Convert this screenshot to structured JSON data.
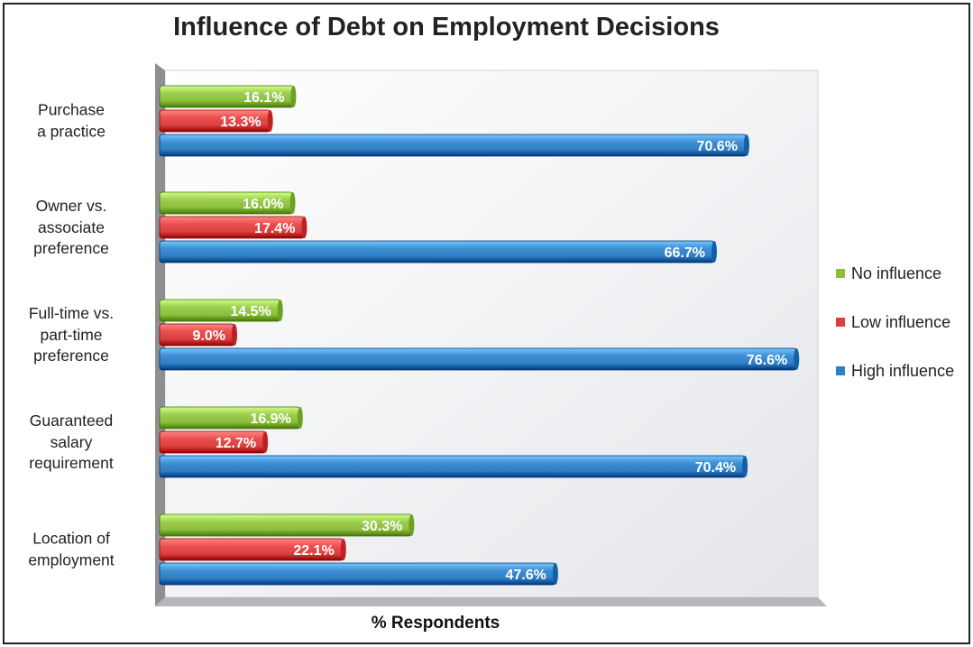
{
  "chart_data": {
    "type": "bar",
    "orientation": "horizontal",
    "title": "Influence of Debt on Employment Decisions",
    "xlabel": "% Respondents",
    "ylabel": "",
    "xlim": [
      0,
      80
    ],
    "categories": [
      "Purchase\na practice",
      "Owner vs.\nassociate\npreference",
      "Full-time vs.\npart-time\npreference",
      "Guaranteed\nsalary\nrequirement",
      "Location of\nemployment"
    ],
    "series": [
      {
        "name": "No influence",
        "color": "#8cbf3f",
        "values": [
          16.1,
          16.0,
          14.5,
          16.9,
          30.3
        ],
        "labels": [
          "16.1%",
          "16.0%",
          "14.5%",
          "16.9%",
          "30.3%"
        ]
      },
      {
        "name": "Low influence",
        "color": "#d9403f",
        "values": [
          13.3,
          17.4,
          9.0,
          12.7,
          22.1
        ],
        "labels": [
          "13.3%",
          "17.4%",
          "9.0%",
          "12.7%",
          "22.1%"
        ]
      },
      {
        "name": "High influence",
        "color": "#2f7fc4",
        "values": [
          70.6,
          66.7,
          76.6,
          70.4,
          47.6
        ],
        "labels": [
          "70.6%",
          "66.7%",
          "76.6%",
          "70.4%",
          "47.6%"
        ]
      }
    ],
    "legend_position": "right",
    "grid": false
  }
}
